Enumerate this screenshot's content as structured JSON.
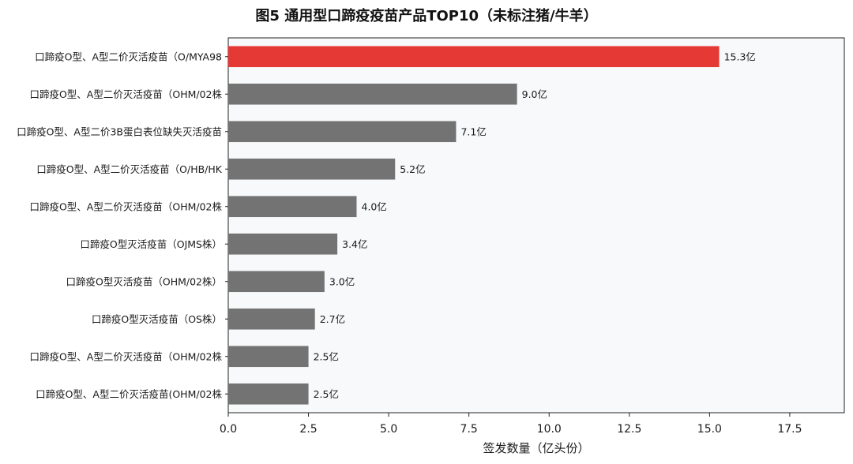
{
  "chart_data": {
    "type": "bar",
    "orientation": "horizontal",
    "title": "图5  通用型口蹄疫疫苗产品TOP10（未标注猪/牛羊）",
    "xlabel": "签发数量（亿头份）",
    "ylabel": "",
    "xlim": [
      0,
      19.2
    ],
    "xticks": [
      "0.0",
      "2.5",
      "5.0",
      "7.5",
      "10.0",
      "12.5",
      "15.0",
      "17.5"
    ],
    "grid": false,
    "legend": "none",
    "categories": [
      "口蹄疫O型、A型二价灭活疫苗（O/MYA98",
      "口蹄疫O型、A型二价灭活疫苗（OHM/02株",
      "口蹄疫O型、A型二价3B蛋白表位缺失灭活疫苗",
      "口蹄疫O型、A型二价灭活疫苗（O/HB/HK",
      "口蹄疫O型、A型二价灭活疫苗（OHM/02株",
      "口蹄疫O型灭活疫苗（OJMS株）",
      "口蹄疫O型灭活疫苗（OHM/02株）",
      "口蹄疫O型灭活疫苗（OS株）",
      "口蹄疫O型、A型二价灭活疫苗（OHM/02株",
      "口蹄疫O型、A型二价灭活疫苗(OHM/02株"
    ],
    "values": [
      15.3,
      9.0,
      7.1,
      5.2,
      4.0,
      3.4,
      3.0,
      2.7,
      2.5,
      2.5
    ],
    "value_labels": [
      "15.3亿",
      "9.0亿",
      "7.1亿",
      "5.2亿",
      "4.0亿",
      "3.4亿",
      "3.0亿",
      "2.7亿",
      "2.5亿",
      "2.5亿"
    ],
    "colors": {
      "highlight": "#e53935",
      "default": "#737373",
      "plot_bg": "#f7f9fa",
      "axis": "#222222"
    },
    "highlight_index": 0
  }
}
